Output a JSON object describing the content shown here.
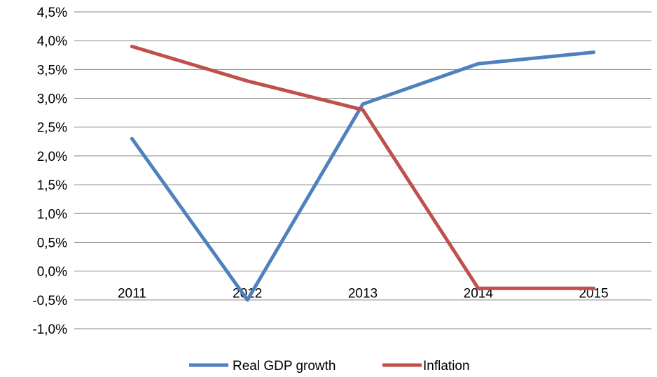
{
  "chart_data": {
    "type": "line",
    "categories": [
      "2011",
      "2012",
      "2013",
      "2014",
      "2015"
    ],
    "series": [
      {
        "name": "Real GDP growth",
        "values": [
          2.3,
          -0.5,
          2.9,
          3.6,
          3.8
        ],
        "color": "#4F81BD"
      },
      {
        "name": "Inflation",
        "values": [
          3.9,
          3.3,
          2.8,
          -0.3,
          -0.3
        ],
        "color": "#C0504D"
      }
    ],
    "ylim": [
      -1.0,
      4.5
    ],
    "yticks": [
      "4,5%",
      "4,0%",
      "3,5%",
      "3,0%",
      "2,5%",
      "2,0%",
      "1,5%",
      "1,0%",
      "0,5%",
      "0,0%",
      "-0,5%",
      "-1,0%"
    ],
    "grid": true,
    "legend": "bottom",
    "title": "",
    "xlabel": "",
    "ylabel": ""
  }
}
